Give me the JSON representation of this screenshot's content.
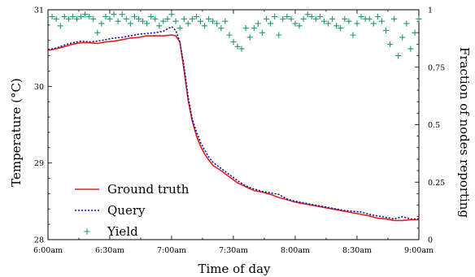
{
  "chart_data": {
    "type": "line",
    "title": "",
    "xlabel": "Time of day",
    "ylabel": "Temperature (°C)",
    "y2label": "Fraction of nodes reporting",
    "x_ticks": [
      "6:00am",
      "6:30am",
      "7:00am",
      "7:30am",
      "8:00am",
      "8:30am",
      "9:00am"
    ],
    "xlim": [
      0,
      180
    ],
    "x_unit": "minutes after 6:00am",
    "ylim": [
      28,
      31
    ],
    "y_ticks": [
      28,
      29,
      30,
      31
    ],
    "y2lim": [
      0,
      1
    ],
    "y2_ticks": [
      0,
      0.25,
      0.5,
      0.75,
      1
    ],
    "y2_tick_labels": [
      "0",
      "0.25",
      "0.5",
      "0.75",
      "1"
    ],
    "legend_position": "bottom-left",
    "grid": false,
    "colors": {
      "truth": "#e0201b",
      "query": "#1a1aa6",
      "yield": "#1f9a6a"
    },
    "series": [
      {
        "name": "Ground truth",
        "axis": "left",
        "style": "solid",
        "x": [
          0,
          4,
          8,
          12,
          16,
          20,
          24,
          28,
          32,
          36,
          40,
          44,
          48,
          52,
          56,
          60,
          62,
          64,
          66,
          68,
          70,
          72,
          74,
          76,
          78,
          80,
          84,
          88,
          92,
          96,
          100,
          104,
          108,
          112,
          116,
          120,
          124,
          128,
          132,
          136,
          140,
          144,
          148,
          152,
          156,
          160,
          164,
          168,
          172,
          176,
          180
        ],
        "y": [
          30.47,
          30.49,
          30.52,
          30.55,
          30.57,
          30.57,
          30.56,
          30.58,
          30.59,
          30.61,
          30.63,
          30.64,
          30.66,
          30.66,
          30.66,
          30.67,
          30.66,
          30.58,
          30.22,
          29.82,
          29.55,
          29.36,
          29.22,
          29.12,
          29.04,
          28.97,
          28.9,
          28.82,
          28.74,
          28.69,
          28.64,
          28.62,
          28.59,
          28.55,
          28.52,
          28.49,
          28.47,
          28.45,
          28.43,
          28.41,
          28.39,
          28.37,
          28.35,
          28.33,
          28.31,
          28.28,
          28.27,
          28.25,
          28.25,
          28.26,
          28.26
        ]
      },
      {
        "name": "Query",
        "axis": "left",
        "style": "dotted",
        "x": [
          0,
          4,
          8,
          12,
          16,
          20,
          24,
          28,
          32,
          36,
          40,
          44,
          48,
          52,
          56,
          58,
          60,
          62,
          64,
          66,
          68,
          70,
          72,
          74,
          76,
          78,
          80,
          84,
          88,
          92,
          96,
          100,
          104,
          108,
          112,
          114,
          116,
          120,
          124,
          128,
          132,
          136,
          140,
          144,
          148,
          152,
          156,
          160,
          164,
          168,
          172,
          176,
          180
        ],
        "y": [
          30.48,
          30.5,
          30.54,
          30.57,
          30.59,
          30.58,
          30.59,
          30.61,
          30.63,
          30.64,
          30.66,
          30.68,
          30.69,
          30.7,
          30.72,
          30.75,
          30.78,
          30.73,
          30.58,
          30.27,
          29.86,
          29.58,
          29.41,
          29.27,
          29.17,
          29.08,
          29.01,
          28.93,
          28.85,
          28.77,
          28.7,
          28.66,
          28.63,
          28.61,
          28.59,
          28.56,
          28.53,
          28.5,
          28.48,
          28.46,
          28.44,
          28.42,
          28.4,
          28.38,
          28.37,
          28.36,
          28.33,
          28.31,
          28.29,
          28.27,
          28.3,
          28.27,
          28.27
        ]
      },
      {
        "name": "Yield",
        "axis": "right",
        "style": "marker-plus",
        "x": [
          2,
          4,
          6,
          8,
          10,
          12,
          14,
          16,
          18,
          20,
          22,
          24,
          26,
          28,
          30,
          32,
          34,
          36,
          38,
          40,
          42,
          44,
          46,
          48,
          50,
          52,
          54,
          56,
          58,
          60,
          62,
          64,
          66,
          68,
          70,
          72,
          74,
          76,
          78,
          80,
          82,
          84,
          86,
          88,
          90,
          92,
          94,
          96,
          98,
          100,
          102,
          104,
          106,
          108,
          110,
          112,
          114,
          116,
          118,
          120,
          122,
          124,
          126,
          128,
          130,
          132,
          134,
          136,
          138,
          140,
          142,
          144,
          146,
          148,
          150,
          152,
          154,
          156,
          158,
          160,
          162,
          164,
          166,
          168,
          170,
          172,
          174,
          176,
          178,
          180
        ],
        "y": [
          0.97,
          0.96,
          0.93,
          0.97,
          0.96,
          0.97,
          0.96,
          0.97,
          0.98,
          0.97,
          0.96,
          0.9,
          0.94,
          0.97,
          0.96,
          0.98,
          0.95,
          0.98,
          0.96,
          0.94,
          0.97,
          0.96,
          0.95,
          0.94,
          0.97,
          0.96,
          0.93,
          0.95,
          0.96,
          0.98,
          0.95,
          0.92,
          0.96,
          0.94,
          0.96,
          0.97,
          0.95,
          0.93,
          0.96,
          0.95,
          0.94,
          0.92,
          0.95,
          0.89,
          0.86,
          0.84,
          0.83,
          0.92,
          0.88,
          0.92,
          0.94,
          0.9,
          0.96,
          0.94,
          0.97,
          0.89,
          0.96,
          0.97,
          0.96,
          0.94,
          0.93,
          0.96,
          0.98,
          0.97,
          0.96,
          0.97,
          0.95,
          0.94,
          0.96,
          0.93,
          0.92,
          0.96,
          0.95,
          0.89,
          0.94,
          0.97,
          0.96,
          0.96,
          0.94,
          0.97,
          0.95,
          0.91,
          0.85,
          0.96,
          0.8,
          0.88,
          0.94,
          0.83,
          0.9,
          0.96
        ]
      }
    ]
  }
}
